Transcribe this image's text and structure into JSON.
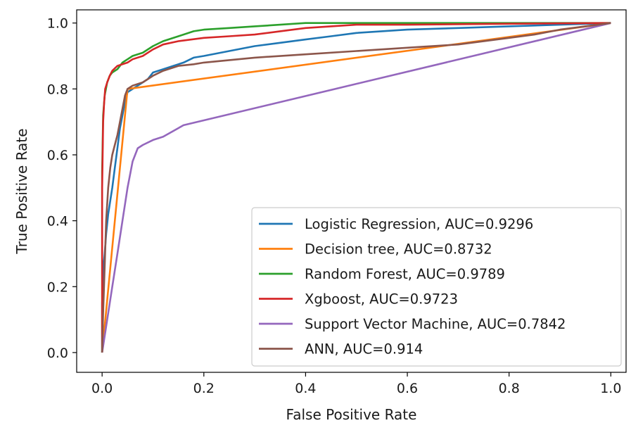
{
  "chart_data": {
    "type": "line",
    "xlabel": "False Positive Rate",
    "ylabel": "True Positive Rate",
    "xlim": [
      -0.05,
      1.03
    ],
    "ylim": [
      -0.06,
      1.04
    ],
    "x_ticks": [
      0.0,
      0.2,
      0.4,
      0.6,
      0.8,
      1.0
    ],
    "y_ticks": [
      0.0,
      0.2,
      0.4,
      0.6,
      0.8,
      1.0
    ],
    "x_tick_labels": [
      "0.0",
      "0.2",
      "0.4",
      "0.6",
      "0.8",
      "1.0"
    ],
    "y_tick_labels": [
      "0.0",
      "0.2",
      "0.4",
      "0.6",
      "0.8",
      "1.0"
    ],
    "grid": false,
    "legend_position": "lower-right",
    "series": [
      {
        "name": "Logistic Regression, AUC=0.9296",
        "color": "#1f77b4",
        "points": [
          [
            0.0,
            0.0
          ],
          [
            0.0,
            0.15
          ],
          [
            0.002,
            0.25
          ],
          [
            0.005,
            0.3
          ],
          [
            0.008,
            0.36
          ],
          [
            0.012,
            0.42
          ],
          [
            0.016,
            0.46
          ],
          [
            0.02,
            0.5
          ],
          [
            0.025,
            0.56
          ],
          [
            0.03,
            0.62
          ],
          [
            0.035,
            0.68
          ],
          [
            0.04,
            0.72
          ],
          [
            0.045,
            0.76
          ],
          [
            0.05,
            0.79
          ],
          [
            0.06,
            0.8
          ],
          [
            0.07,
            0.81
          ],
          [
            0.08,
            0.82
          ],
          [
            0.09,
            0.83
          ],
          [
            0.1,
            0.85
          ],
          [
            0.12,
            0.86
          ],
          [
            0.14,
            0.87
          ],
          [
            0.16,
            0.88
          ],
          [
            0.18,
            0.895
          ],
          [
            0.2,
            0.9
          ],
          [
            0.25,
            0.915
          ],
          [
            0.3,
            0.93
          ],
          [
            0.35,
            0.94
          ],
          [
            0.4,
            0.95
          ],
          [
            0.45,
            0.96
          ],
          [
            0.5,
            0.97
          ],
          [
            0.6,
            0.98
          ],
          [
            0.7,
            0.985
          ],
          [
            0.8,
            0.99
          ],
          [
            0.9,
            0.995
          ],
          [
            1.0,
            1.0
          ]
        ]
      },
      {
        "name": "Decision tree, AUC=0.8732",
        "color": "#ff7f0e",
        "points": [
          [
            0.0,
            0.0
          ],
          [
            0.05,
            0.8
          ],
          [
            1.0,
            1.0
          ]
        ]
      },
      {
        "name": "Random Forest, AUC=0.9789",
        "color": "#2ca02c",
        "points": [
          [
            0.0,
            0.0
          ],
          [
            0.0,
            0.55
          ],
          [
            0.002,
            0.72
          ],
          [
            0.005,
            0.78
          ],
          [
            0.01,
            0.82
          ],
          [
            0.015,
            0.84
          ],
          [
            0.02,
            0.85
          ],
          [
            0.03,
            0.86
          ],
          [
            0.04,
            0.88
          ],
          [
            0.05,
            0.89
          ],
          [
            0.06,
            0.9
          ],
          [
            0.08,
            0.91
          ],
          [
            0.1,
            0.93
          ],
          [
            0.12,
            0.945
          ],
          [
            0.15,
            0.96
          ],
          [
            0.18,
            0.975
          ],
          [
            0.2,
            0.98
          ],
          [
            0.25,
            0.985
          ],
          [
            0.3,
            0.99
          ],
          [
            0.35,
            0.995
          ],
          [
            0.4,
            1.0
          ],
          [
            0.6,
            1.0
          ],
          [
            1.0,
            1.0
          ]
        ]
      },
      {
        "name": "Xgboost, AUC=0.9723",
        "color": "#d62728",
        "points": [
          [
            0.0,
            0.0
          ],
          [
            0.0,
            0.5
          ],
          [
            0.002,
            0.7
          ],
          [
            0.004,
            0.76
          ],
          [
            0.006,
            0.8
          ],
          [
            0.01,
            0.82
          ],
          [
            0.015,
            0.84
          ],
          [
            0.02,
            0.855
          ],
          [
            0.03,
            0.87
          ],
          [
            0.04,
            0.875
          ],
          [
            0.05,
            0.88
          ],
          [
            0.06,
            0.89
          ],
          [
            0.08,
            0.9
          ],
          [
            0.1,
            0.92
          ],
          [
            0.12,
            0.935
          ],
          [
            0.15,
            0.945
          ],
          [
            0.2,
            0.955
          ],
          [
            0.25,
            0.96
          ],
          [
            0.3,
            0.965
          ],
          [
            0.35,
            0.975
          ],
          [
            0.4,
            0.985
          ],
          [
            0.45,
            0.99
          ],
          [
            0.5,
            0.995
          ],
          [
            0.6,
            0.995
          ],
          [
            0.75,
            0.997
          ],
          [
            0.9,
            0.999
          ],
          [
            1.0,
            1.0
          ]
        ]
      },
      {
        "name": "Support Vector Machine, AUC=0.7842",
        "color": "#9467bd",
        "points": [
          [
            0.0,
            0.0
          ],
          [
            0.01,
            0.1
          ],
          [
            0.02,
            0.2
          ],
          [
            0.03,
            0.3
          ],
          [
            0.04,
            0.4
          ],
          [
            0.05,
            0.5
          ],
          [
            0.06,
            0.58
          ],
          [
            0.07,
            0.62
          ],
          [
            0.08,
            0.63
          ],
          [
            0.1,
            0.645
          ],
          [
            0.12,
            0.655
          ],
          [
            0.16,
            0.69
          ],
          [
            1.0,
            1.0
          ]
        ]
      },
      {
        "name": "ANN, AUC=0.914",
        "color": "#8c564b",
        "points": [
          [
            0.0,
            0.0
          ],
          [
            0.002,
            0.12
          ],
          [
            0.005,
            0.26
          ],
          [
            0.008,
            0.4
          ],
          [
            0.012,
            0.5
          ],
          [
            0.016,
            0.56
          ],
          [
            0.02,
            0.6
          ],
          [
            0.025,
            0.63
          ],
          [
            0.03,
            0.66
          ],
          [
            0.035,
            0.7
          ],
          [
            0.04,
            0.74
          ],
          [
            0.045,
            0.78
          ],
          [
            0.05,
            0.8
          ],
          [
            0.06,
            0.81
          ],
          [
            0.08,
            0.82
          ],
          [
            0.1,
            0.84
          ],
          [
            0.12,
            0.855
          ],
          [
            0.15,
            0.87
          ],
          [
            0.18,
            0.875
          ],
          [
            0.2,
            0.88
          ],
          [
            0.3,
            0.895
          ],
          [
            0.4,
            0.905
          ],
          [
            0.5,
            0.915
          ],
          [
            0.6,
            0.925
          ],
          [
            0.7,
            0.935
          ],
          [
            0.8,
            0.955
          ],
          [
            0.85,
            0.965
          ],
          [
            0.9,
            0.98
          ],
          [
            0.95,
            0.99
          ],
          [
            1.0,
            1.0
          ]
        ]
      }
    ]
  }
}
